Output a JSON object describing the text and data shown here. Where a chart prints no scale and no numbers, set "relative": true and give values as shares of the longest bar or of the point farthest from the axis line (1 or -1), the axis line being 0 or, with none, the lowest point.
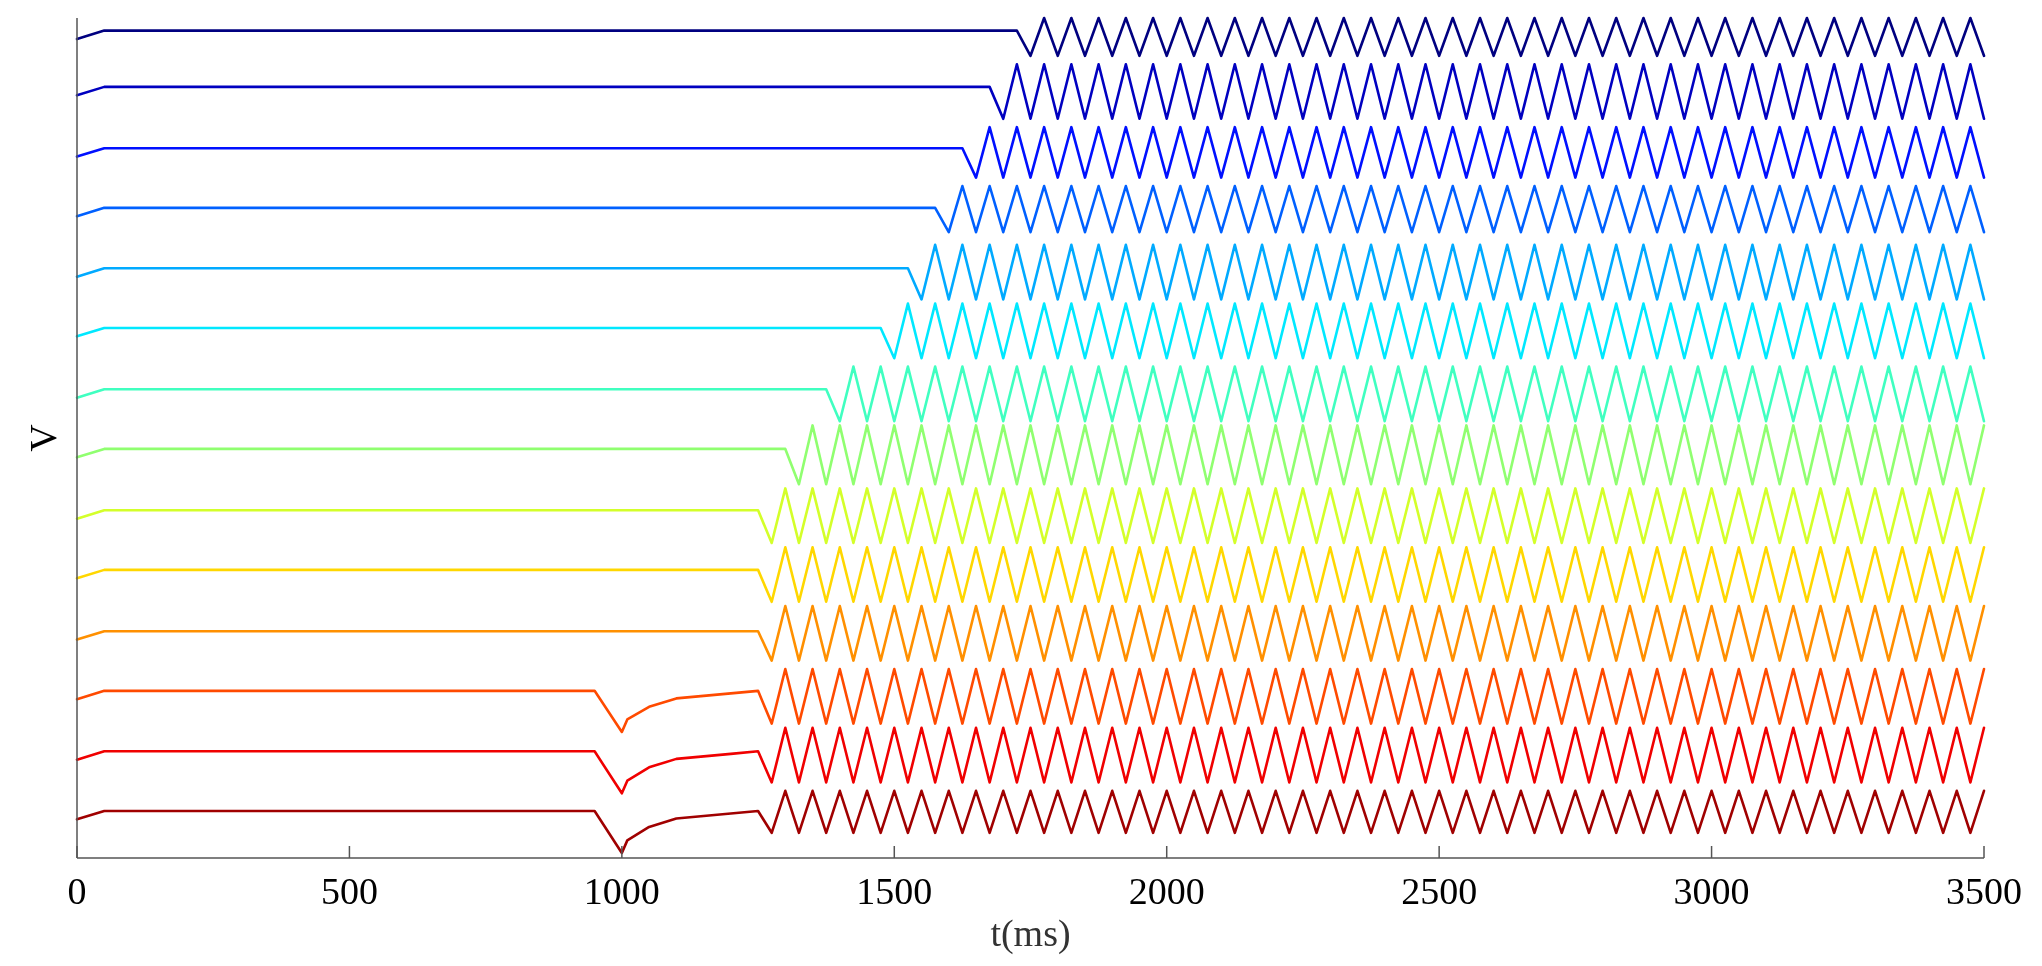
{
  "chart_data": {
    "type": "line",
    "relative": true,
    "xlabel": "t(ms)",
    "ylabel": "V",
    "xlim": [
      0,
      3500
    ],
    "xticks": [
      0,
      500,
      1000,
      1500,
      2000,
      2500,
      3000,
      3500
    ],
    "tick_labels": "x",
    "grid": false,
    "line_style": "solid",
    "marker": "none",
    "x": [
      0,
      50,
      100,
      950,
      1000,
      1010,
      1050,
      1100,
      1200,
      1250,
      1275,
      1300,
      1325,
      1350,
      1375,
      1400,
      1425,
      1450,
      1475,
      1500,
      1525,
      1550,
      1575,
      1600,
      1625,
      1650,
      1675,
      1700,
      1725,
      1750,
      1775,
      1800,
      1825,
      1850,
      1875,
      1900,
      1925,
      1950,
      1975,
      2000,
      2025,
      2050,
      2075,
      2100,
      2125,
      2150,
      2175,
      2200,
      2225,
      2250,
      2275,
      2300,
      2325,
      2350,
      2375,
      2400,
      2425,
      2450,
      2475,
      2500,
      2525,
      2550,
      2575,
      2600,
      2625,
      2650,
      2675,
      2700,
      2725,
      2750,
      2775,
      2800,
      2825,
      2850,
      2875,
      2900,
      2925,
      2950,
      2975,
      3000,
      3025,
      3050,
      3075,
      3100,
      3125,
      3150,
      3175,
      3200,
      3225,
      3250,
      3275,
      3300,
      3325,
      3350,
      3375,
      3400,
      3425,
      3450,
      3475,
      3500
    ],
    "series": [
      {
        "color": "#000080",
        "values": [
          0.975,
          0.985,
          0.985,
          0.985,
          0.985,
          0.985,
          0.985,
          0.985,
          0.985,
          0.985,
          0.985,
          0.985,
          0.985,
          0.985,
          0.985,
          0.985,
          0.985,
          0.985,
          0.985,
          0.985,
          0.985,
          0.985,
          0.985,
          0.985,
          0.985,
          0.985,
          0.985,
          0.985,
          0.985,
          0.955,
          1.0,
          0.955,
          1.0,
          0.955,
          1.0,
          0.955,
          1.0,
          0.955,
          1.0,
          0.955,
          1.0,
          0.955,
          1.0,
          0.955,
          1.0,
          0.955,
          1.0,
          0.955,
          1.0,
          0.955,
          1.0,
          0.955,
          1.0,
          0.955,
          1.0,
          0.955,
          1.0,
          0.955,
          1.0,
          0.955,
          1.0,
          0.955,
          1.0,
          0.955,
          1.0,
          0.955,
          1.0,
          0.955,
          1.0,
          0.955,
          1.0,
          0.955,
          1.0,
          0.955,
          1.0,
          0.955,
          1.0,
          0.955,
          1.0,
          0.955,
          1.0,
          0.955,
          1.0,
          0.955,
          1.0,
          0.955,
          1.0,
          0.955,
          1.0,
          0.955,
          1.0,
          0.955,
          1.0,
          0.955,
          1.0,
          0.955,
          1.0,
          0.955,
          1.0,
          0.955
        ]
      },
      {
        "color": "#0000c0",
        "values": [
          0.908,
          0.918,
          0.918,
          0.918,
          0.918,
          0.918,
          0.918,
          0.918,
          0.918,
          0.918,
          0.918,
          0.918,
          0.918,
          0.918,
          0.918,
          0.918,
          0.918,
          0.918,
          0.918,
          0.918,
          0.918,
          0.918,
          0.918,
          0.918,
          0.918,
          0.918,
          0.918,
          0.88,
          0.945,
          0.88,
          0.945,
          0.88,
          0.945,
          0.88,
          0.945,
          0.88,
          0.945,
          0.88,
          0.945,
          0.88,
          0.945,
          0.88,
          0.945,
          0.88,
          0.945,
          0.88,
          0.945,
          0.88,
          0.945,
          0.88,
          0.945,
          0.88,
          0.945,
          0.88,
          0.945,
          0.88,
          0.945,
          0.88,
          0.945,
          0.88,
          0.945,
          0.88,
          0.945,
          0.88,
          0.945,
          0.88,
          0.945,
          0.88,
          0.945,
          0.88,
          0.945,
          0.88,
          0.945,
          0.88,
          0.945,
          0.88,
          0.945,
          0.88,
          0.945,
          0.88,
          0.945,
          0.88,
          0.945,
          0.88,
          0.945,
          0.88,
          0.945,
          0.88,
          0.945,
          0.88,
          0.945,
          0.88,
          0.945,
          0.88,
          0.945,
          0.88,
          0.945,
          0.88,
          0.945,
          0.88
        ]
      },
      {
        "color": "#0010ff",
        "values": [
          0.835,
          0.845,
          0.845,
          0.845,
          0.845,
          0.845,
          0.845,
          0.845,
          0.845,
          0.845,
          0.845,
          0.845,
          0.845,
          0.845,
          0.845,
          0.845,
          0.845,
          0.845,
          0.845,
          0.845,
          0.845,
          0.845,
          0.845,
          0.845,
          0.845,
          0.81,
          0.87,
          0.81,
          0.87,
          0.81,
          0.87,
          0.81,
          0.87,
          0.81,
          0.87,
          0.81,
          0.87,
          0.81,
          0.87,
          0.81,
          0.87,
          0.81,
          0.87,
          0.81,
          0.87,
          0.81,
          0.87,
          0.81,
          0.87,
          0.81,
          0.87,
          0.81,
          0.87,
          0.81,
          0.87,
          0.81,
          0.87,
          0.81,
          0.87,
          0.81,
          0.87,
          0.81,
          0.87,
          0.81,
          0.87,
          0.81,
          0.87,
          0.81,
          0.87,
          0.81,
          0.87,
          0.81,
          0.87,
          0.81,
          0.87,
          0.81,
          0.87,
          0.81,
          0.87,
          0.81,
          0.87,
          0.81,
          0.87,
          0.81,
          0.87,
          0.81,
          0.87,
          0.81,
          0.87,
          0.81,
          0.87,
          0.81,
          0.87,
          0.81,
          0.87,
          0.81,
          0.87,
          0.81,
          0.87,
          0.81
        ]
      },
      {
        "color": "#0060ff",
        "values": [
          0.764,
          0.774,
          0.774,
          0.774,
          0.774,
          0.774,
          0.774,
          0.774,
          0.774,
          0.774,
          0.774,
          0.774,
          0.774,
          0.774,
          0.774,
          0.774,
          0.774,
          0.774,
          0.774,
          0.774,
          0.774,
          0.774,
          0.774,
          0.745,
          0.8,
          0.745,
          0.8,
          0.745,
          0.8,
          0.745,
          0.8,
          0.745,
          0.8,
          0.745,
          0.8,
          0.745,
          0.8,
          0.745,
          0.8,
          0.745,
          0.8,
          0.745,
          0.8,
          0.745,
          0.8,
          0.745,
          0.8,
          0.745,
          0.8,
          0.745,
          0.8,
          0.745,
          0.8,
          0.745,
          0.8,
          0.745,
          0.8,
          0.745,
          0.8,
          0.745,
          0.8,
          0.745,
          0.8,
          0.745,
          0.8,
          0.745,
          0.8,
          0.745,
          0.8,
          0.745,
          0.8,
          0.745,
          0.8,
          0.745,
          0.8,
          0.745,
          0.8,
          0.745,
          0.8,
          0.745,
          0.8,
          0.745,
          0.8,
          0.745,
          0.8,
          0.745,
          0.8,
          0.745,
          0.8,
          0.745,
          0.8,
          0.745,
          0.8,
          0.745,
          0.8,
          0.745,
          0.8,
          0.745,
          0.8,
          0.745
        ]
      },
      {
        "color": "#00aaff",
        "values": [
          0.692,
          0.702,
          0.702,
          0.702,
          0.702,
          0.702,
          0.702,
          0.702,
          0.702,
          0.702,
          0.702,
          0.702,
          0.702,
          0.702,
          0.702,
          0.702,
          0.702,
          0.702,
          0.702,
          0.702,
          0.702,
          0.665,
          0.73,
          0.665,
          0.73,
          0.665,
          0.73,
          0.665,
          0.73,
          0.665,
          0.73,
          0.665,
          0.73,
          0.665,
          0.73,
          0.665,
          0.73,
          0.665,
          0.73,
          0.665,
          0.73,
          0.665,
          0.73,
          0.665,
          0.73,
          0.665,
          0.73,
          0.665,
          0.73,
          0.665,
          0.73,
          0.665,
          0.73,
          0.665,
          0.73,
          0.665,
          0.73,
          0.665,
          0.73,
          0.665,
          0.73,
          0.665,
          0.73,
          0.665,
          0.73,
          0.665,
          0.73,
          0.665,
          0.73,
          0.665,
          0.73,
          0.665,
          0.73,
          0.665,
          0.73,
          0.665,
          0.73,
          0.665,
          0.73,
          0.665,
          0.73,
          0.665,
          0.73,
          0.665,
          0.73,
          0.665,
          0.73,
          0.665,
          0.73,
          0.665,
          0.73,
          0.665,
          0.73,
          0.665,
          0.73,
          0.665,
          0.73,
          0.665,
          0.73,
          0.665
        ]
      },
      {
        "color": "#00e8ff",
        "values": [
          0.621,
          0.631,
          0.631,
          0.631,
          0.631,
          0.631,
          0.631,
          0.631,
          0.631,
          0.631,
          0.631,
          0.631,
          0.631,
          0.631,
          0.631,
          0.631,
          0.631,
          0.631,
          0.631,
          0.595,
          0.66,
          0.595,
          0.66,
          0.595,
          0.66,
          0.595,
          0.66,
          0.595,
          0.66,
          0.595,
          0.66,
          0.595,
          0.66,
          0.595,
          0.66,
          0.595,
          0.66,
          0.595,
          0.66,
          0.595,
          0.66,
          0.595,
          0.66,
          0.595,
          0.66,
          0.595,
          0.66,
          0.595,
          0.66,
          0.595,
          0.66,
          0.595,
          0.66,
          0.595,
          0.66,
          0.595,
          0.66,
          0.595,
          0.66,
          0.595,
          0.66,
          0.595,
          0.66,
          0.595,
          0.66,
          0.595,
          0.66,
          0.595,
          0.66,
          0.595,
          0.66,
          0.595,
          0.66,
          0.595,
          0.66,
          0.595,
          0.66,
          0.595,
          0.66,
          0.595,
          0.66,
          0.595,
          0.66,
          0.595,
          0.66,
          0.595,
          0.66,
          0.595,
          0.66,
          0.595,
          0.66,
          0.595,
          0.66,
          0.595,
          0.66,
          0.595,
          0.66,
          0.595,
          0.66,
          0.595
        ]
      },
      {
        "color": "#40ffc0",
        "values": [
          0.548,
          0.558,
          0.558,
          0.558,
          0.558,
          0.558,
          0.558,
          0.558,
          0.558,
          0.558,
          0.558,
          0.558,
          0.558,
          0.558,
          0.558,
          0.52,
          0.585,
          0.52,
          0.585,
          0.52,
          0.585,
          0.52,
          0.585,
          0.52,
          0.585,
          0.52,
          0.585,
          0.52,
          0.585,
          0.52,
          0.585,
          0.52,
          0.585,
          0.52,
          0.585,
          0.52,
          0.585,
          0.52,
          0.585,
          0.52,
          0.585,
          0.52,
          0.585,
          0.52,
          0.585,
          0.52,
          0.585,
          0.52,
          0.585,
          0.52,
          0.585,
          0.52,
          0.585,
          0.52,
          0.585,
          0.52,
          0.585,
          0.52,
          0.585,
          0.52,
          0.585,
          0.52,
          0.585,
          0.52,
          0.585,
          0.52,
          0.585,
          0.52,
          0.585,
          0.52,
          0.585,
          0.52,
          0.585,
          0.52,
          0.585,
          0.52,
          0.585,
          0.52,
          0.585,
          0.52,
          0.585,
          0.52,
          0.585,
          0.52,
          0.585,
          0.52,
          0.585,
          0.52,
          0.585,
          0.52,
          0.585,
          0.52,
          0.585,
          0.52,
          0.585,
          0.52,
          0.585,
          0.52,
          0.585,
          0.52
        ]
      },
      {
        "color": "#90ff70",
        "values": [
          0.477,
          0.487,
          0.487,
          0.487,
          0.487,
          0.487,
          0.487,
          0.487,
          0.487,
          0.487,
          0.487,
          0.487,
          0.445,
          0.515,
          0.445,
          0.515,
          0.445,
          0.515,
          0.445,
          0.515,
          0.445,
          0.515,
          0.445,
          0.515,
          0.445,
          0.515,
          0.445,
          0.515,
          0.445,
          0.515,
          0.445,
          0.515,
          0.445,
          0.515,
          0.445,
          0.515,
          0.445,
          0.515,
          0.445,
          0.515,
          0.445,
          0.515,
          0.445,
          0.515,
          0.445,
          0.515,
          0.445,
          0.515,
          0.445,
          0.515,
          0.445,
          0.515,
          0.445,
          0.515,
          0.445,
          0.515,
          0.445,
          0.515,
          0.445,
          0.515,
          0.445,
          0.515,
          0.445,
          0.515,
          0.445,
          0.515,
          0.445,
          0.515,
          0.445,
          0.515,
          0.445,
          0.515,
          0.445,
          0.515,
          0.445,
          0.515,
          0.445,
          0.515,
          0.445,
          0.515,
          0.445,
          0.515,
          0.445,
          0.515,
          0.445,
          0.515,
          0.445,
          0.515,
          0.445,
          0.515,
          0.445,
          0.515,
          0.445,
          0.515,
          0.445,
          0.515,
          0.445,
          0.515,
          0.445,
          0.515
        ]
      },
      {
        "color": "#d4ff2a",
        "values": [
          0.404,
          0.414,
          0.414,
          0.414,
          0.414,
          0.414,
          0.414,
          0.414,
          0.414,
          0.414,
          0.375,
          0.44,
          0.375,
          0.44,
          0.375,
          0.44,
          0.375,
          0.44,
          0.375,
          0.44,
          0.375,
          0.44,
          0.375,
          0.44,
          0.375,
          0.44,
          0.375,
          0.44,
          0.375,
          0.44,
          0.375,
          0.44,
          0.375,
          0.44,
          0.375,
          0.44,
          0.375,
          0.44,
          0.375,
          0.44,
          0.375,
          0.44,
          0.375,
          0.44,
          0.375,
          0.44,
          0.375,
          0.44,
          0.375,
          0.44,
          0.375,
          0.44,
          0.375,
          0.44,
          0.375,
          0.44,
          0.375,
          0.44,
          0.375,
          0.44,
          0.375,
          0.44,
          0.375,
          0.44,
          0.375,
          0.44,
          0.375,
          0.44,
          0.375,
          0.44,
          0.375,
          0.44,
          0.375,
          0.44,
          0.375,
          0.44,
          0.375,
          0.44,
          0.375,
          0.44,
          0.375,
          0.44,
          0.375,
          0.44,
          0.375,
          0.44,
          0.375,
          0.44,
          0.375,
          0.44,
          0.375,
          0.44,
          0.375,
          0.44,
          0.375,
          0.44,
          0.375,
          0.44,
          0.375,
          0.44
        ]
      },
      {
        "color": "#ffd700",
        "values": [
          0.333,
          0.343,
          0.343,
          0.343,
          0.343,
          0.343,
          0.343,
          0.343,
          0.343,
          0.343,
          0.305,
          0.37,
          0.305,
          0.37,
          0.305,
          0.37,
          0.305,
          0.37,
          0.305,
          0.37,
          0.305,
          0.37,
          0.305,
          0.37,
          0.305,
          0.37,
          0.305,
          0.37,
          0.305,
          0.37,
          0.305,
          0.37,
          0.305,
          0.37,
          0.305,
          0.37,
          0.305,
          0.37,
          0.305,
          0.37,
          0.305,
          0.37,
          0.305,
          0.37,
          0.305,
          0.37,
          0.305,
          0.37,
          0.305,
          0.37,
          0.305,
          0.37,
          0.305,
          0.37,
          0.305,
          0.37,
          0.305,
          0.37,
          0.305,
          0.37,
          0.305,
          0.37,
          0.305,
          0.37,
          0.305,
          0.37,
          0.305,
          0.37,
          0.305,
          0.37,
          0.305,
          0.37,
          0.305,
          0.37,
          0.305,
          0.37,
          0.305,
          0.37,
          0.305,
          0.37,
          0.305,
          0.37,
          0.305,
          0.37,
          0.305,
          0.37,
          0.305,
          0.37,
          0.305,
          0.37,
          0.305,
          0.37,
          0.305,
          0.37,
          0.305,
          0.37,
          0.305,
          0.37,
          0.305,
          0.37
        ]
      },
      {
        "color": "#ff9000",
        "values": [
          0.26,
          0.27,
          0.27,
          0.27,
          0.27,
          0.27,
          0.27,
          0.27,
          0.27,
          0.27,
          0.235,
          0.3,
          0.235,
          0.3,
          0.235,
          0.3,
          0.235,
          0.3,
          0.235,
          0.3,
          0.235,
          0.3,
          0.235,
          0.3,
          0.235,
          0.3,
          0.235,
          0.3,
          0.235,
          0.3,
          0.235,
          0.3,
          0.235,
          0.3,
          0.235,
          0.3,
          0.235,
          0.3,
          0.235,
          0.3,
          0.235,
          0.3,
          0.235,
          0.3,
          0.235,
          0.3,
          0.235,
          0.3,
          0.235,
          0.3,
          0.235,
          0.3,
          0.235,
          0.3,
          0.235,
          0.3,
          0.235,
          0.3,
          0.235,
          0.3,
          0.235,
          0.3,
          0.235,
          0.3,
          0.235,
          0.3,
          0.235,
          0.3,
          0.235,
          0.3,
          0.235,
          0.3,
          0.235,
          0.3,
          0.235,
          0.3,
          0.235,
          0.3,
          0.235,
          0.3,
          0.235,
          0.3,
          0.235,
          0.3,
          0.235,
          0.3,
          0.235,
          0.3,
          0.235,
          0.3,
          0.235,
          0.3,
          0.235,
          0.3,
          0.235,
          0.3,
          0.235,
          0.3,
          0.235,
          0.3
        ]
      },
      {
        "color": "#ff4a00",
        "values": [
          0.189,
          0.199,
          0.199,
          0.199,
          0.15,
          0.165,
          0.18,
          0.19,
          0.196,
          0.199,
          0.16,
          0.225,
          0.16,
          0.225,
          0.16,
          0.225,
          0.16,
          0.225,
          0.16,
          0.225,
          0.16,
          0.225,
          0.16,
          0.225,
          0.16,
          0.225,
          0.16,
          0.225,
          0.16,
          0.225,
          0.16,
          0.225,
          0.16,
          0.225,
          0.16,
          0.225,
          0.16,
          0.225,
          0.16,
          0.225,
          0.16,
          0.225,
          0.16,
          0.225,
          0.16,
          0.225,
          0.16,
          0.225,
          0.16,
          0.225,
          0.16,
          0.225,
          0.16,
          0.225,
          0.16,
          0.225,
          0.16,
          0.225,
          0.16,
          0.225,
          0.16,
          0.225,
          0.16,
          0.225,
          0.16,
          0.225,
          0.16,
          0.225,
          0.16,
          0.225,
          0.16,
          0.225,
          0.16,
          0.225,
          0.16,
          0.225,
          0.16,
          0.225,
          0.16,
          0.225,
          0.16,
          0.225,
          0.16,
          0.225,
          0.16,
          0.225,
          0.16,
          0.225,
          0.16,
          0.225,
          0.16,
          0.225,
          0.16,
          0.225,
          0.16,
          0.225,
          0.16,
          0.225,
          0.16,
          0.225
        ]
      },
      {
        "color": "#f00000",
        "values": [
          0.117,
          0.127,
          0.127,
          0.127,
          0.077,
          0.092,
          0.108,
          0.118,
          0.124,
          0.127,
          0.09,
          0.155,
          0.09,
          0.155,
          0.09,
          0.155,
          0.09,
          0.155,
          0.09,
          0.155,
          0.09,
          0.155,
          0.09,
          0.155,
          0.09,
          0.155,
          0.09,
          0.155,
          0.09,
          0.155,
          0.09,
          0.155,
          0.09,
          0.155,
          0.09,
          0.155,
          0.09,
          0.155,
          0.09,
          0.155,
          0.09,
          0.155,
          0.09,
          0.155,
          0.09,
          0.155,
          0.09,
          0.155,
          0.09,
          0.155,
          0.09,
          0.155,
          0.09,
          0.155,
          0.09,
          0.155,
          0.09,
          0.155,
          0.09,
          0.155,
          0.09,
          0.155,
          0.09,
          0.155,
          0.09,
          0.155,
          0.09,
          0.155,
          0.09,
          0.155,
          0.09,
          0.155,
          0.09,
          0.155,
          0.09,
          0.155,
          0.09,
          0.155,
          0.09,
          0.155,
          0.09,
          0.155,
          0.09,
          0.155,
          0.09,
          0.155,
          0.09,
          0.155,
          0.09,
          0.155,
          0.09,
          0.155,
          0.09,
          0.155,
          0.09,
          0.155,
          0.09,
          0.155,
          0.09,
          0.155
        ]
      },
      {
        "color": "#a00000",
        "values": [
          0.046,
          0.056,
          0.056,
          0.056,
          0.006,
          0.021,
          0.037,
          0.047,
          0.053,
          0.056,
          0.03,
          0.08,
          0.03,
          0.08,
          0.03,
          0.08,
          0.03,
          0.08,
          0.03,
          0.08,
          0.03,
          0.08,
          0.03,
          0.08,
          0.03,
          0.08,
          0.03,
          0.08,
          0.03,
          0.08,
          0.03,
          0.08,
          0.03,
          0.08,
          0.03,
          0.08,
          0.03,
          0.08,
          0.03,
          0.08,
          0.03,
          0.08,
          0.03,
          0.08,
          0.03,
          0.08,
          0.03,
          0.08,
          0.03,
          0.08,
          0.03,
          0.08,
          0.03,
          0.08,
          0.03,
          0.08,
          0.03,
          0.08,
          0.03,
          0.08,
          0.03,
          0.08,
          0.03,
          0.08,
          0.03,
          0.08,
          0.03,
          0.08,
          0.03,
          0.08,
          0.03,
          0.08,
          0.03,
          0.08,
          0.03,
          0.08,
          0.03,
          0.08,
          0.03,
          0.08,
          0.03,
          0.08,
          0.03,
          0.08,
          0.03,
          0.08,
          0.03,
          0.08,
          0.03,
          0.08,
          0.03,
          0.08,
          0.03,
          0.08,
          0.03,
          0.08,
          0.03,
          0.08,
          0.03,
          0.08
        ]
      }
    ]
  }
}
